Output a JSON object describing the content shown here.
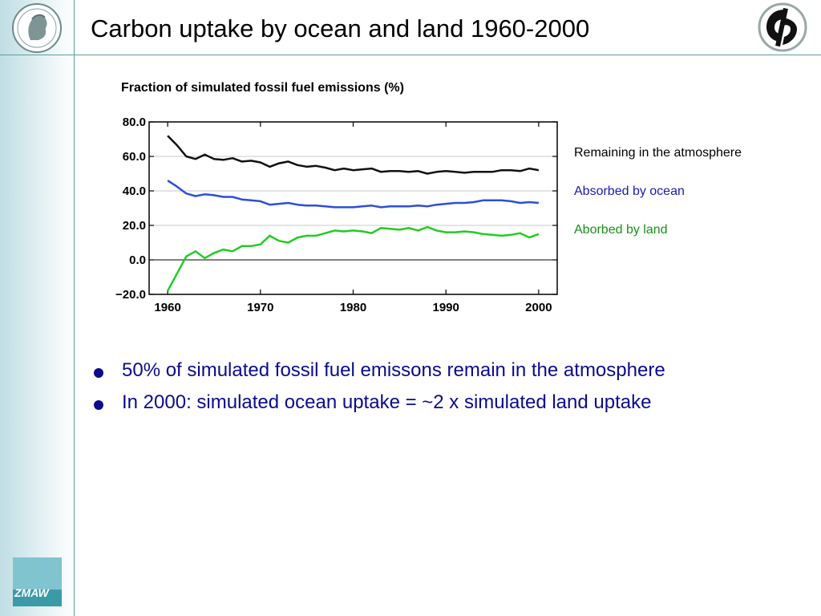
{
  "slide": {
    "title": "Carbon uptake by ocean and land 1960-2000",
    "logo_left": "max-planck-logo",
    "logo_right": "institute-logo",
    "logo_bottom": "zmaw-logo",
    "logo_bottom_text": "ZMAW"
  },
  "chart_data": {
    "type": "line",
    "title": "Fraction of simulated fossil fuel emissions (%)",
    "xlabel": "",
    "ylabel": "",
    "xlim": [
      1958,
      2002
    ],
    "ylim": [
      -20,
      80
    ],
    "xticks": [
      1960,
      1970,
      1980,
      1990,
      2000
    ],
    "xtick_labels": [
      "1960",
      "1970",
      "1980",
      "1990",
      "2000"
    ],
    "yticks": [
      -20,
      0,
      20,
      40,
      60,
      80
    ],
    "ytick_labels": [
      "−20.0",
      "0.0",
      "20.0",
      "40.0",
      "60.0",
      "80.0"
    ],
    "grid": true,
    "x": [
      1960,
      1961,
      1962,
      1963,
      1964,
      1965,
      1966,
      1967,
      1968,
      1969,
      1970,
      1971,
      1972,
      1973,
      1974,
      1975,
      1976,
      1977,
      1978,
      1979,
      1980,
      1981,
      1982,
      1983,
      1984,
      1985,
      1986,
      1987,
      1988,
      1989,
      1990,
      1991,
      1992,
      1993,
      1994,
      1995,
      1996,
      1997,
      1998,
      1999,
      2000
    ],
    "series": [
      {
        "name": "Remaining in the atmosphere",
        "color": "#111111",
        "values": [
          72,
          66.5,
          60,
          58.5,
          61,
          58.5,
          58,
          59,
          57,
          57.5,
          56.5,
          54,
          56,
          57,
          55,
          54,
          54.5,
          53.5,
          52,
          53,
          52,
          52.5,
          53,
          51,
          51.5,
          51.5,
          51,
          51.5,
          50,
          51,
          51.5,
          51,
          50.5,
          51,
          51,
          51,
          52,
          52,
          51.5,
          53,
          52
        ]
      },
      {
        "name": "Absorbed by ocean",
        "color": "#2c4fd8",
        "values": [
          46,
          42.5,
          38.5,
          37,
          38,
          37.5,
          36.5,
          36.5,
          35,
          34.5,
          34,
          32,
          32.5,
          33,
          32,
          31.5,
          31.5,
          31,
          30.5,
          30.5,
          30.5,
          31,
          31.5,
          30.5,
          31,
          31,
          31,
          31.5,
          31,
          32,
          32.5,
          33,
          33,
          33.5,
          34.5,
          34.5,
          34.5,
          34,
          33,
          33.5,
          33
        ]
      },
      {
        "name": "Aborbed by land",
        "color": "#22cc22",
        "values": [
          -18,
          -8,
          2,
          5,
          1,
          4,
          6,
          5,
          8,
          8,
          9,
          14,
          11,
          10,
          13,
          14,
          14,
          15.5,
          17,
          16.5,
          17,
          16.5,
          15.5,
          18.5,
          18,
          17.5,
          18.5,
          17,
          19,
          17,
          16,
          16,
          16.5,
          16,
          15,
          14.5,
          14,
          14.5,
          15.5,
          13,
          15
        ]
      }
    ],
    "legend_placement": "right"
  },
  "legend": {
    "atmosphere": "Remaining in the atmosphere",
    "ocean": "Absorbed by ocean",
    "land": "Aborbed by land",
    "atmosphere_color": "#000000",
    "ocean_color": "#1a1ab0",
    "land_color": "#189018"
  },
  "bullets": [
    "50% of simulated fossil fuel emissons remain in the atmosphere",
    "In 2000: simulated ocean uptake = ~2 x simulated land uptake"
  ]
}
